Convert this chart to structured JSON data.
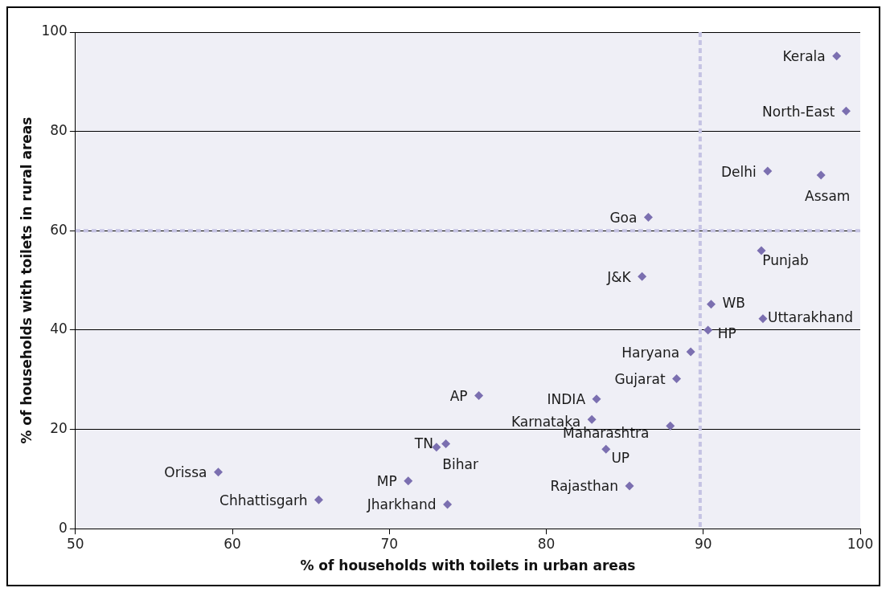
{
  "chart_data": {
    "type": "scatter",
    "xlabel": "% of households with toilets in urban areas",
    "ylabel": "% of households with toilets in rural areas",
    "x": [
      98.5,
      99.1,
      94.1,
      97.5,
      86.5,
      93.7,
      86.1,
      90.5,
      93.8,
      90.3,
      89.2,
      88.3,
      83.2,
      82.9,
      87.9,
      83.8,
      85.3,
      75.7,
      73.0,
      73.6,
      59.1,
      71.2,
      65.5,
      73.7
    ],
    "series": [
      {
        "color": "#7b6fb0",
        "values": [
          95.2,
          84.1,
          72.0,
          71.2,
          62.7,
          56.0,
          50.8,
          45.2,
          42.3,
          40.0,
          35.6,
          30.2,
          26.1,
          22.0,
          20.7,
          16.0,
          8.6,
          26.8,
          16.4,
          17.1,
          11.4,
          9.6,
          5.8,
          4.9
        ]
      }
    ],
    "marker": "diamond",
    "grid": "y",
    "legend": false,
    "xlim": [
      50,
      100
    ],
    "xticks": [
      50,
      60,
      70,
      80,
      90,
      100
    ],
    "ylim": [
      0,
      100
    ],
    "yticks": [
      0,
      20,
      40,
      60,
      80,
      100
    ],
    "ref_lines": [
      {
        "axis": "x",
        "value": 89.8,
        "color": "#c5c3e3",
        "line_style": "dashed"
      },
      {
        "axis": "y",
        "value": 60,
        "color": "#c5c3e3",
        "line_style": "dashed"
      }
    ],
    "annotations": [
      {
        "text": "Kerala",
        "x": 98.5,
        "y": 95.2
      },
      {
        "text": "North-East",
        "x": 99.1,
        "y": 84.1
      },
      {
        "text": "Delhi",
        "x": 94.1,
        "y": 72.0
      },
      {
        "text": "Assam",
        "x": 97.5,
        "y": 71.2
      },
      {
        "text": "Goa",
        "x": 86.5,
        "y": 62.7
      },
      {
        "text": "Punjab",
        "x": 93.7,
        "y": 56.0
      },
      {
        "text": "J&K",
        "x": 86.1,
        "y": 50.8
      },
      {
        "text": "WB",
        "x": 90.5,
        "y": 45.2
      },
      {
        "text": "Uttarakhand",
        "x": 93.8,
        "y": 42.3
      },
      {
        "text": "HP",
        "x": 90.3,
        "y": 40.0
      },
      {
        "text": "Haryana",
        "x": 89.2,
        "y": 35.6
      },
      {
        "text": "Gujarat",
        "x": 88.3,
        "y": 30.2
      },
      {
        "text": "INDIA",
        "x": 83.2,
        "y": 26.1
      },
      {
        "text": "Karnataka",
        "x": 82.9,
        "y": 22.0
      },
      {
        "text": "Maharashtra",
        "x": 87.9,
        "y": 20.7
      },
      {
        "text": "UP",
        "x": 83.8,
        "y": 16.0
      },
      {
        "text": "Rajasthan",
        "x": 85.3,
        "y": 8.6
      },
      {
        "text": "AP",
        "x": 75.7,
        "y": 26.8
      },
      {
        "text": "TN",
        "x": 73.0,
        "y": 16.4
      },
      {
        "text": "Bihar",
        "x": 73.6,
        "y": 17.1
      },
      {
        "text": "Orissa",
        "x": 59.1,
        "y": 11.4
      },
      {
        "text": "MP",
        "x": 71.2,
        "y": 9.6
      },
      {
        "text": "Chhattisgarh",
        "x": 65.5,
        "y": 5.8
      },
      {
        "text": "Jharkhand",
        "x": 73.7,
        "y": 4.9
      }
    ]
  }
}
